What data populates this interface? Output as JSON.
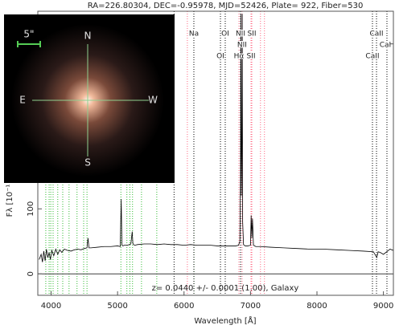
{
  "chart_data": {
    "type": "line",
    "title": "RA=226.80304, DEC=-0.95978, MJD=52426, Plate= 922, Fiber=530",
    "x_label": "Wavelength [Å]",
    "y_label": "Fλ [10⁻¹",
    "annotation": "z= 0.0440 +/- 0.0001 (1.00), Galaxy",
    "color": "#000000",
    "x": [
      3820,
      3850,
      3870,
      3890,
      3910,
      3930,
      3950,
      3970,
      3990,
      4010,
      4040,
      4070,
      4100,
      4130,
      4160,
      4200,
      4250,
      4300,
      4350,
      4400,
      4450,
      4500,
      4540,
      4555,
      4570,
      4600,
      4700,
      4800,
      4900,
      5000,
      5040,
      5055,
      5065,
      5080,
      5100,
      5150,
      5200,
      5220,
      5230,
      5240,
      5260,
      5300,
      5400,
      5500,
      5600,
      5700,
      5800,
      5900,
      6000,
      6100,
      6200,
      6300,
      6400,
      6500,
      6600,
      6700,
      6780,
      6820,
      6840,
      6850,
      6855,
      6862,
      6870,
      6876,
      6882,
      6895,
      6920,
      6960,
      7000,
      7010,
      7020,
      7030,
      7045,
      7080,
      7150,
      7300,
      7500,
      7700,
      7900,
      8100,
      8300,
      8500,
      8700,
      8850,
      8900,
      8920,
      8950,
      9000,
      9100,
      9150
    ],
    "values": [
      22,
      30,
      18,
      35,
      20,
      38,
      25,
      33,
      22,
      36,
      28,
      38,
      30,
      37,
      33,
      38,
      36,
      35,
      37,
      38,
      37,
      39,
      40,
      55,
      40,
      40,
      41,
      42,
      42,
      43,
      42,
      115,
      45,
      43,
      44,
      44,
      46,
      65,
      47,
      45,
      44,
      45,
      46,
      46,
      45,
      46,
      45,
      45,
      44,
      45,
      44,
      44,
      44,
      43,
      43,
      43,
      43,
      44,
      50,
      150,
      400,
      120,
      200,
      400,
      80,
      45,
      43,
      43,
      44,
      90,
      55,
      85,
      44,
      42,
      42,
      41,
      40,
      39,
      38,
      38,
      37,
      36,
      35,
      34,
      25,
      34,
      33,
      30,
      38,
      36
    ],
    "xlim": [
      3800,
      9150
    ],
    "ylim": [
      -33,
      404
    ],
    "xticks": [
      4000,
      5000,
      6000,
      7000,
      8000,
      9000
    ],
    "yticks": [
      0,
      100
    ],
    "line_labels": [
      {
        "label": "Na",
        "x": 6148,
        "color": "#000000"
      },
      {
        "label": "OI",
        "x": 6620,
        "color": "#000000"
      },
      {
        "label": "NII",
        "x": 6850,
        "color": "#000000"
      },
      {
        "label": "SII",
        "x": 7020,
        "color": "#ff6680"
      },
      {
        "label": "CaII",
        "x": 8896,
        "color": "#000000"
      },
      {
        "label": "NII",
        "x": 6873,
        "color": "#ff6680"
      },
      {
        "label": "CaH",
        "x": 9053,
        "color": "#000000"
      },
      {
        "label": "OI",
        "x": 6548,
        "color": "#000000"
      },
      {
        "label": "Hα",
        "x": 6826,
        "color": "#ff6680"
      },
      {
        "label": "SII",
        "x": 7008,
        "color": "#ff6680"
      },
      {
        "label": "CaII",
        "x": 8835,
        "color": "#000000"
      }
    ],
    "lines": [
      {
        "x": 3920,
        "color": "#33bb33"
      },
      {
        "x": 3970,
        "color": "#33bb33"
      },
      {
        "x": 3995,
        "color": "#33bb33"
      },
      {
        "x": 4030,
        "color": "#33bb33"
      },
      {
        "x": 4100,
        "color": "#33bb33"
      },
      {
        "x": 4175,
        "color": "#33bb33"
      },
      {
        "x": 4270,
        "color": "#33bb33"
      },
      {
        "x": 4390,
        "color": "#33bb33"
      },
      {
        "x": 4490,
        "color": "#33bb33"
      },
      {
        "x": 4540,
        "color": "#33bb33"
      },
      {
        "x": 5050,
        "color": "#33bb33"
      },
      {
        "x": 5140,
        "color": "#33bb33"
      },
      {
        "x": 5185,
        "color": "#33bb33"
      },
      {
        "x": 5225,
        "color": "#33bb33"
      },
      {
        "x": 5360,
        "color": "#33bb33"
      },
      {
        "x": 5590,
        "color": "#33bb33"
      },
      {
        "x": 5850,
        "color": "#000000"
      },
      {
        "x": 6050,
        "color": "#ff6680"
      },
      {
        "x": 7150,
        "color": "#ff6680"
      },
      {
        "x": 7210,
        "color": "#ff6680"
      },
      {
        "x": 6150,
        "color": "#33bb33"
      }
    ]
  },
  "inset": {
    "scale": "5\"",
    "north": "N",
    "south": "S",
    "east": "E",
    "west": "W"
  }
}
